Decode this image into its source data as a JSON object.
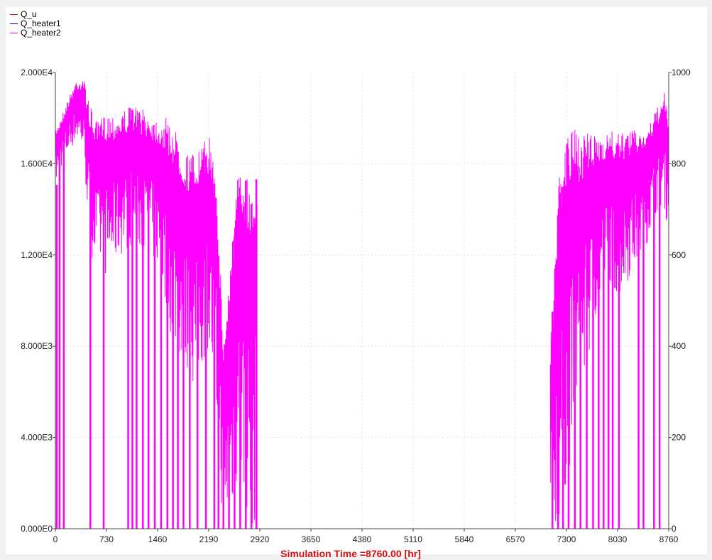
{
  "chart_data": {
    "type": "line",
    "xlabel": "Simulation Time =8760.00 [hr]",
    "xlim": [
      0,
      8760
    ],
    "x_ticks": [
      0,
      730,
      1460,
      2190,
      2920,
      3650,
      4380,
      5110,
      5840,
      6570,
      7300,
      8030,
      8760
    ],
    "ylim_left": [
      0,
      20000
    ],
    "y_left_tick_labels": [
      "0.000E0",
      "4.000E3",
      "8.000E3",
      "1.200E4",
      "1.600E4",
      "2.000E4"
    ],
    "ylim_right": [
      0,
      1000
    ],
    "y_right_tick_labels": [
      "0",
      "200",
      "400",
      "600",
      "800",
      "1000"
    ],
    "grid": true,
    "legend_position": "top-left",
    "series": [
      {
        "name": "Q_u",
        "color": "#e00000",
        "axis": "left",
        "values": []
      },
      {
        "name": "Q_heater1",
        "color": "#00008b",
        "axis": "left",
        "values": []
      },
      {
        "name": "Q_heater2",
        "color": "#ff00ff",
        "axis": "left",
        "active_periods_hr": [
          [
            0,
            2880
          ],
          [
            7070,
            8760
          ]
        ],
        "peak_envelope": {
          "x": [
            0,
            100,
            200,
            300,
            400,
            500,
            600,
            730,
            900,
            1100,
            1300,
            1460,
            1600,
            1700,
            1850,
            2000,
            2100,
            2190,
            2300,
            2400,
            2500,
            2600,
            2700,
            2800,
            2880,
            7070,
            7200,
            7300,
            7500,
            7700,
            7900,
            8030,
            8200,
            8400,
            8500,
            8600,
            8700,
            8760
          ],
          "y": [
            17500,
            18200,
            19000,
            19700,
            19800,
            18500,
            17800,
            18300,
            18200,
            18600,
            18300,
            18000,
            18000,
            17600,
            16500,
            16500,
            16800,
            17300,
            16000,
            8000,
            12000,
            15500,
            16000,
            15000,
            16000,
            8000,
            16500,
            17500,
            17500,
            17200,
            17500,
            17300,
            17500,
            17500,
            17800,
            18500,
            19100,
            18000
          ]
        },
        "trough_envelope": {
          "x": [
            0,
            100,
            200,
            300,
            400,
            500,
            600,
            730,
            900,
            1100,
            1300,
            1460,
            1600,
            1700,
            1850,
            2000,
            2100,
            2190,
            2300,
            2400,
            2500,
            2600,
            2700,
            2800,
            2880,
            7070,
            7200,
            7300,
            7500,
            7700,
            7900,
            8030,
            8200,
            8400,
            8500,
            8600,
            8700,
            8760
          ],
          "y": [
            15000,
            16000,
            16500,
            17000,
            16500,
            12000,
            11500,
            11000,
            11800,
            12500,
            12000,
            11500,
            9000,
            8000,
            7000,
            6000,
            7000,
            8000,
            4000,
            0,
            0,
            2000,
            1000,
            0,
            0,
            0,
            0,
            2000,
            5000,
            9000,
            11000,
            10000,
            11000,
            12000,
            13000,
            14000,
            14000,
            13000
          ]
        },
        "zero_dips_hr": [
          20,
          60,
          120,
          500,
          690,
          1040,
          1100,
          1160,
          1250,
          1330,
          1420,
          1510,
          1600,
          1680,
          1750,
          1830,
          1920,
          2030,
          2150,
          2270,
          2330,
          2400,
          2480,
          2560,
          2640,
          2720,
          2800,
          2870,
          7100,
          7180,
          7250,
          7330,
          7420,
          7500,
          7590,
          7680,
          7760,
          7830,
          7900,
          7960,
          8050,
          8330,
          8400,
          8550,
          8630
        ]
      }
    ]
  }
}
